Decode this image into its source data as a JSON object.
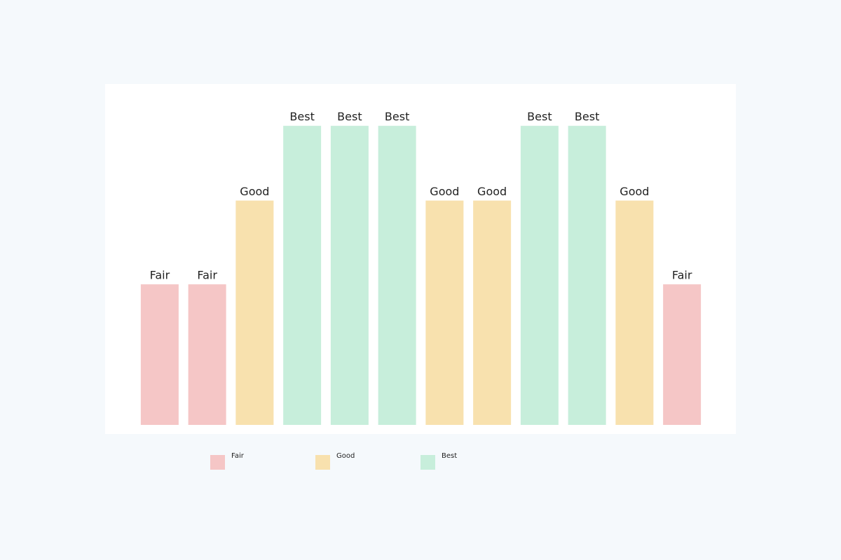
{
  "chart_data": {
    "type": "bar",
    "categories": [
      null,
      null,
      null,
      null,
      null,
      null,
      null,
      null,
      null,
      null,
      null,
      null
    ],
    "series": [
      {
        "name": "Fair",
        "color": "#f5c6c6",
        "values": [
          47,
          47,
          null,
          null,
          null,
          null,
          null,
          null,
          null,
          null,
          null,
          47
        ]
      },
      {
        "name": "Good",
        "color": "#f8e1ae",
        "values": [
          null,
          null,
          75,
          null,
          null,
          null,
          75,
          75,
          null,
          null,
          75,
          null
        ]
      },
      {
        "name": "Best",
        "color": "#c7eedb",
        "values": [
          null,
          null,
          null,
          100,
          100,
          100,
          null,
          null,
          100,
          100,
          null,
          null
        ]
      }
    ],
    "ylim": [
      0,
      110
    ]
  }
}
